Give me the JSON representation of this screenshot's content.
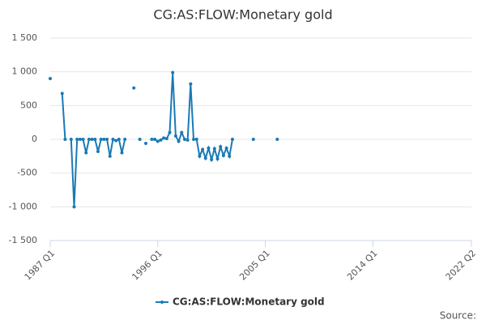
{
  "chart_data": {
    "type": "line",
    "title": "CG:AS:FLOW:Monetary gold",
    "categories": [
      "1987 Q1",
      null,
      null,
      null,
      null,
      null,
      null,
      null,
      null,
      null,
      null,
      null,
      null,
      null,
      null,
      null,
      null,
      null,
      null,
      null,
      null,
      null,
      null,
      null,
      null,
      null,
      null,
      null,
      null,
      null,
      null,
      null,
      null,
      null,
      null,
      null,
      "1996 Q1",
      null,
      null,
      null,
      null,
      null,
      null,
      null,
      null,
      null,
      null,
      null,
      null,
      null,
      null,
      null,
      null,
      null,
      null,
      null,
      null,
      null,
      null,
      null,
      null,
      null,
      null,
      null,
      null,
      null,
      null,
      null,
      null,
      null,
      null,
      null,
      "2005 Q1",
      null,
      null,
      null,
      null,
      null,
      null,
      null,
      null,
      null,
      null,
      null,
      null,
      null,
      null,
      null,
      null,
      null,
      null,
      null,
      null,
      null,
      null,
      null,
      null,
      null,
      null,
      null,
      null,
      null,
      null,
      null,
      null,
      null,
      null,
      null,
      "2014 Q1",
      null,
      null,
      null,
      null,
      null,
      null,
      null,
      null,
      null,
      null,
      null,
      null,
      null,
      null,
      null,
      null,
      null,
      null,
      null,
      null,
      null,
      null,
      null,
      null,
      null,
      null,
      null,
      null,
      null,
      null,
      null,
      null,
      "2022 Q2"
    ],
    "series": [
      {
        "name": "CG:AS:FLOW:Monetary gold",
        "color": "#1a7ab5",
        "values": [
          900,
          null,
          null,
          null,
          680,
          0,
          null,
          0,
          -1000,
          0,
          0,
          0,
          -200,
          0,
          0,
          0,
          -180,
          0,
          0,
          0,
          -250,
          0,
          -20,
          0,
          -200,
          0,
          null,
          null,
          760,
          null,
          0,
          null,
          -60,
          null,
          0,
          0,
          -30,
          -10,
          20,
          10,
          100,
          990,
          50,
          -30,
          100,
          0,
          -10,
          820,
          0,
          0,
          -250,
          -150,
          -280,
          -130,
          -300,
          -140,
          -290,
          -110,
          -240,
          -130,
          -250,
          0,
          null,
          null,
          null,
          null,
          null,
          null,
          0,
          null,
          null,
          null,
          null,
          null,
          null,
          null,
          0,
          null,
          null,
          null,
          null,
          null,
          null,
          null,
          null,
          null,
          null,
          null,
          null,
          null,
          null,
          null,
          null,
          null,
          null,
          null,
          null,
          null,
          null,
          null,
          null,
          null,
          null,
          null,
          null,
          null,
          null,
          null,
          null,
          null,
          null,
          null,
          null,
          null,
          null,
          null,
          null,
          null,
          null,
          null,
          null,
          null,
          null,
          null,
          null,
          null,
          null,
          null,
          null,
          null,
          null,
          null,
          null,
          null,
          null,
          null,
          null,
          null,
          null,
          null,
          null,
          null
        ]
      }
    ],
    "ylim": [
      -1500,
      1500
    ],
    "yticks": [
      {
        "value": -1500,
        "label": "-1 500"
      },
      {
        "value": -1000,
        "label": "-1 000"
      },
      -500,
      0,
      500,
      {
        "value": 1000,
        "label": "1 000"
      },
      {
        "value": 1500,
        "label": "1 500"
      }
    ],
    "grid": true,
    "legend": "bottom",
    "source": "Source:"
  }
}
